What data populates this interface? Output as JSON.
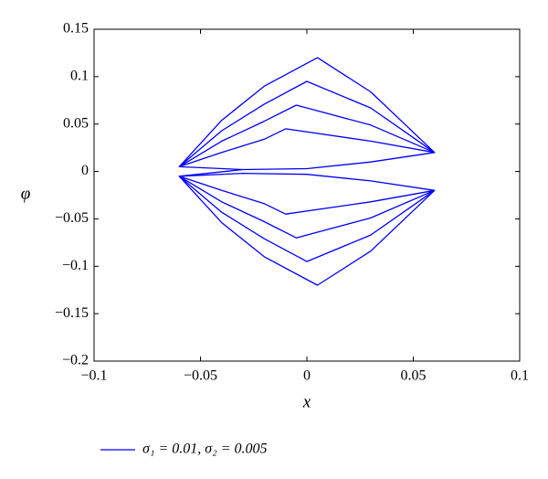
{
  "chart_data": {
    "type": "line",
    "xlabel": "x",
    "ylabel": "φ",
    "xlim": [
      -0.1,
      0.1
    ],
    "xticks": [
      {
        "value": -0.1,
        "label": "−0.1"
      },
      {
        "value": -0.05,
        "label": "−0.05"
      },
      0,
      0.05,
      0.1
    ],
    "ylim": [
      -0.2,
      0.15
    ],
    "yticks": [
      {
        "value": -0.2,
        "label": "−0.2"
      },
      {
        "value": -0.15,
        "label": "−0.15"
      },
      {
        "value": -0.1,
        "label": "−0.1"
      },
      {
        "value": -0.05,
        "label": "−0.05"
      },
      0,
      0.05,
      0.1,
      0.15
    ],
    "legend": "bottom-left",
    "series": [
      {
        "name": "σ₁ = 0.01, σ₂ = 0.005",
        "color": "#0000ff",
        "x": [
          -0.06,
          -0.04,
          -0.02,
          0.005,
          0.03,
          0.06,
          0.03,
          0,
          -0.03,
          -0.06,
          -0.04,
          -0.02,
          0,
          0.03,
          0.06,
          0.03,
          0,
          -0.03,
          -0.06,
          -0.04,
          -0.02,
          -0.005,
          0.03,
          0.06,
          0.03,
          0,
          -0.03,
          -0.06,
          -0.04,
          -0.02,
          -0.01,
          0.03,
          0.06,
          0.03,
          0,
          -0.03,
          -0.06,
          -0.04,
          -0.02,
          0.005,
          0.03,
          0.06,
          0.03,
          0,
          -0.03,
          -0.06,
          -0.04,
          -0.02,
          0,
          0.03,
          0.06,
          0.03,
          0,
          -0.03,
          -0.06,
          -0.04,
          -0.02,
          -0.005,
          0.03,
          0.06,
          0.03,
          0,
          -0.03,
          -0.06,
          -0.04,
          -0.02,
          -0.01,
          0.03,
          0.06,
          0.03,
          0,
          -0.03
        ],
        "values": [
          0.005,
          0.054,
          0.09,
          0.12,
          0.084,
          0.02,
          0.01,
          0.003,
          0.002,
          0.005,
          0.043,
          0.071,
          0.095,
          0.067,
          0.02,
          0.01,
          0.003,
          0.002,
          0.005,
          0.032,
          0.053,
          0.07,
          0.049,
          0.02,
          0.01,
          0.003,
          0.002,
          0.005,
          0.02,
          0.034,
          0.045,
          0.032,
          0.02,
          0.01,
          0.003,
          0.002,
          -0.005,
          -0.054,
          -0.09,
          -0.12,
          -0.084,
          -0.02,
          -0.01,
          -0.003,
          -0.002,
          -0.005,
          -0.043,
          -0.071,
          -0.095,
          -0.067,
          -0.02,
          -0.01,
          -0.003,
          -0.002,
          -0.005,
          -0.032,
          -0.053,
          -0.07,
          -0.049,
          -0.02,
          -0.01,
          -0.003,
          -0.002,
          -0.005,
          -0.02,
          -0.034,
          -0.045,
          -0.032,
          -0.02,
          -0.01,
          -0.003,
          -0.002
        ]
      }
    ]
  }
}
